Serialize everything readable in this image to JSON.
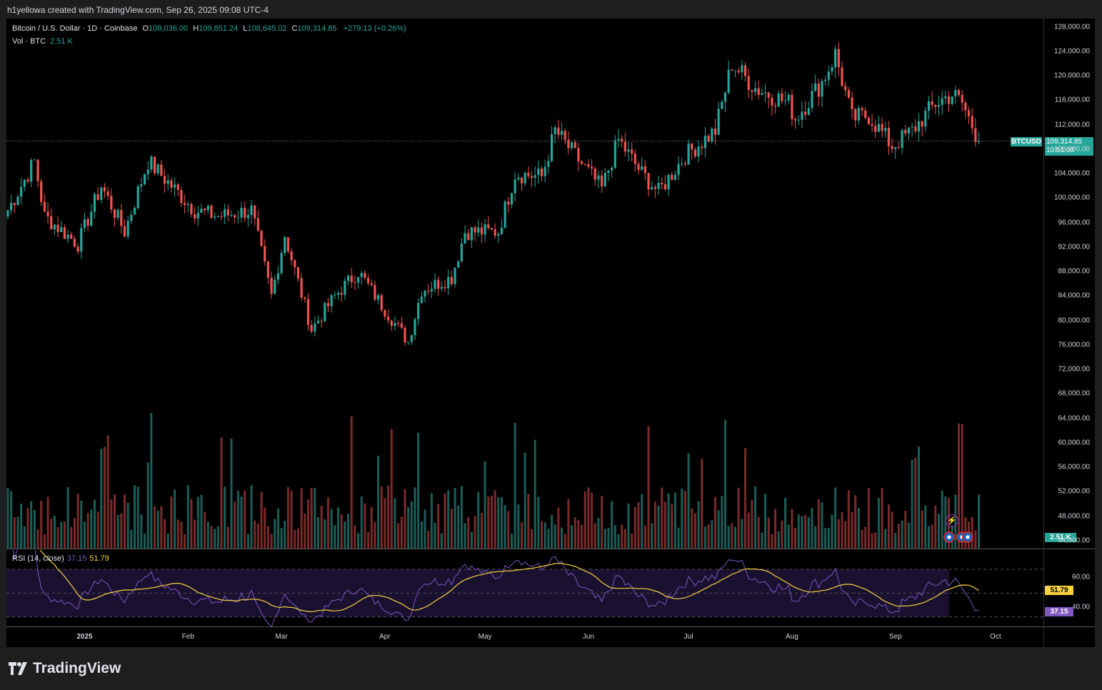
{
  "caption": "h1yellowa created with TradingView.com, Sep 26, 2025 09:08 UTC-4",
  "legend": {
    "symbol": "Bitcoin / U.S. Dollar · 1D · Coinbase",
    "open_k": "O",
    "open_v": "109,036.00",
    "high_k": "H",
    "high_v": "109,851.24",
    "low_k": "L",
    "low_v": "108,645.02",
    "close_k": "C",
    "close_v": "109,314.85",
    "change": "+279.13 (+0.26%)"
  },
  "volume": {
    "label": "Vol · BTC",
    "value": "2.51 K",
    "tag": "2.51 K"
  },
  "rsi": {
    "label": "RSI (14, close)",
    "rsi_value": "37.15",
    "ma_value": "51.79",
    "axis": [
      "60.00",
      "40.00"
    ]
  },
  "ticker_tag": "BTCUSD",
  "last_price": {
    "price": "109,314.85",
    "countdown": "10:51:08"
  },
  "price_axis": [
    "128,000.00",
    "124,000.00",
    "120,000.00",
    "116,000.00",
    "112,000.00",
    "108,000.00",
    "104,000.00",
    "100,000.00",
    "96,000.00",
    "92,000.00",
    "88,000.00",
    "84,000.00",
    "80,000.00",
    "76,000.00",
    "72,000.00",
    "68,000.00",
    "64,000.00",
    "60,000.00",
    "56,000.00",
    "52,000.00",
    "48,000.00",
    "44,000.00"
  ],
  "time_axis": [
    {
      "label": "2025",
      "bold": true
    },
    {
      "label": "Feb"
    },
    {
      "label": "Mar"
    },
    {
      "label": "Apr"
    },
    {
      "label": "May"
    },
    {
      "label": "Jun"
    },
    {
      "label": "Jul"
    },
    {
      "label": "Aug"
    },
    {
      "label": "Sep"
    },
    {
      "label": "Oct"
    }
  ],
  "brand": "TradingView",
  "colors": {
    "up": "#26a69a",
    "down": "#ef5350",
    "vol_up": "#1b5e57",
    "vol_down": "#7a2a2a",
    "rsi": "#7e57c2",
    "rsi_ma": "#f7d23e",
    "rsi_band": "#1a1030"
  },
  "chart_data": {
    "type": "candlestick",
    "x_start": "2024-12-09",
    "x_end": "2025-09-26",
    "ylim": [
      44000,
      128000
    ],
    "anchors": [
      [
        "2024-12-09",
        98000
      ],
      [
        "2024-12-17",
        106000
      ],
      [
        "2024-12-20",
        97000
      ],
      [
        "2024-12-30",
        92500
      ],
      [
        "2025-01-06",
        102000
      ],
      [
        "2025-01-13",
        94500
      ],
      [
        "2025-01-20",
        106000
      ],
      [
        "2025-01-27",
        102000
      ],
      [
        "2025-02-03",
        98000
      ],
      [
        "2025-02-10",
        97000
      ],
      [
        "2025-02-20",
        98000
      ],
      [
        "2025-02-26",
        84000
      ],
      [
        "2025-03-02",
        94000
      ],
      [
        "2025-03-10",
        78500
      ],
      [
        "2025-03-17",
        84000
      ],
      [
        "2025-03-24",
        88000
      ],
      [
        "2025-03-31",
        82500
      ],
      [
        "2025-04-06",
        78000
      ],
      [
        "2025-04-08",
        76500
      ],
      [
        "2025-04-12",
        85000
      ],
      [
        "2025-04-21",
        87000
      ],
      [
        "2025-04-25",
        94500
      ],
      [
        "2025-05-05",
        94500
      ],
      [
        "2025-05-10",
        104000
      ],
      [
        "2025-05-18",
        103500
      ],
      [
        "2025-05-22",
        111000
      ],
      [
        "2025-06-05",
        101500
      ],
      [
        "2025-06-10",
        109500
      ],
      [
        "2025-06-17",
        104000
      ],
      [
        "2025-06-22",
        101000
      ],
      [
        "2025-06-30",
        107000
      ],
      [
        "2025-07-09",
        111000
      ],
      [
        "2025-07-14",
        122000
      ],
      [
        "2025-07-21",
        118000
      ],
      [
        "2025-07-31",
        115500
      ],
      [
        "2025-08-02",
        113000
      ],
      [
        "2025-08-10",
        119000
      ],
      [
        "2025-08-14",
        123500
      ],
      [
        "2025-08-19",
        113000
      ],
      [
        "2025-08-24",
        113500
      ],
      [
        "2025-08-31",
        108500
      ],
      [
        "2025-09-06",
        111000
      ],
      [
        "2025-09-13",
        115500
      ],
      [
        "2025-09-18",
        117000
      ],
      [
        "2025-09-21",
        115500
      ],
      [
        "2025-09-26",
        109314.85
      ]
    ]
  }
}
